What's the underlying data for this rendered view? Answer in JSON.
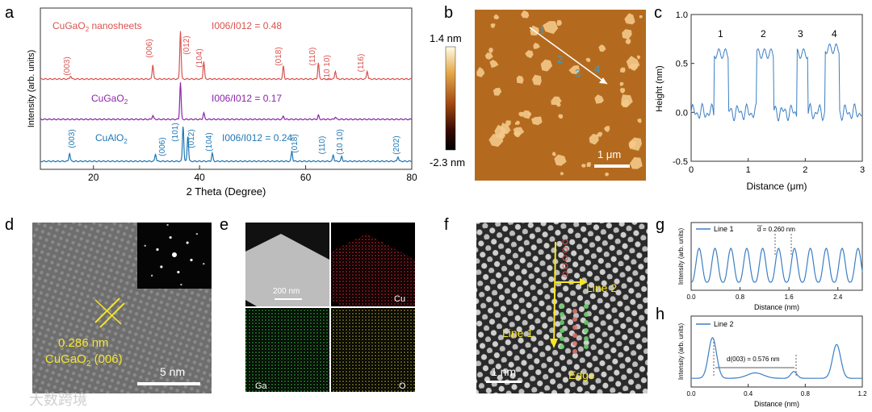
{
  "panel_letters": {
    "a": "a",
    "b": "b",
    "c": "c",
    "d": "d",
    "e": "e",
    "f": "f",
    "g": "g",
    "h": "h"
  },
  "panel_a": {
    "xlabel": "2 Theta (Degree)",
    "ylabel": "Intensity (arb. units)",
    "xticks": [
      "20",
      "40",
      "60",
      "80"
    ],
    "colors": {
      "nanosheets": "#d9534f",
      "cugao2": "#8e24aa",
      "cualo2": "#1f77b4"
    },
    "traces": [
      {
        "name_main": "CuGaO",
        "name_sub": "2",
        "name_tail": " nanosheets",
        "ratio": "I006/I012 = 0.48",
        "peaks": [
          "(003)",
          "(006)",
          "(012)",
          "(104)",
          "(018)",
          "(110)",
          "(10 10)",
          "(116)"
        ]
      },
      {
        "name_main": "CuGaO",
        "name_sub": "2",
        "name_tail": "",
        "ratio": "I006/I012 = 0.17",
        "peaks": []
      },
      {
        "name_main": "CuAlO",
        "name_sub": "2",
        "name_tail": "",
        "ratio": "I006/I012 = 0.24",
        "peaks": [
          "(003)",
          "(006)",
          "(101)",
          "(012)",
          "(104)",
          "(018)",
          "(110)",
          "(10 10)",
          "(202)"
        ]
      }
    ]
  },
  "panel_b": {
    "scale_top": "1.4 nm",
    "scale_bottom": "-2.3 nm",
    "scalebar": "1 μm",
    "markers": [
      "1",
      "2",
      "3",
      "4"
    ]
  },
  "panel_c": {
    "xlabel": "Distance (μm)",
    "ylabel": "Height (nm)",
    "xticks": [
      "0",
      "1",
      "2",
      "3"
    ],
    "yticks": [
      "1.0",
      "0.5",
      "0.0",
      "-0.5"
    ],
    "peak_labels": [
      "1",
      "2",
      "3",
      "4"
    ]
  },
  "panel_d": {
    "d_spacing": "0.286 nm",
    "plane_main": "CuGaO",
    "plane_sub": "2",
    "plane_tail": " (006)",
    "scalebar": "5 nm"
  },
  "panel_e": {
    "scalebar": "200 nm",
    "elements": [
      "Cu",
      "Ga",
      "O"
    ]
  },
  "panel_f": {
    "line1": "Line 1",
    "line2": "Line 2",
    "edge": "Edge",
    "scalebar": "1 nm"
  },
  "panel_g": {
    "legend": "Line 1",
    "dbar": "d = 0.260 nm",
    "xlabel": "Distance (nm)",
    "ylabel": "Intensity (arb. units)",
    "xticks": [
      "0.0",
      "0.8",
      "1.6",
      "2.4"
    ]
  },
  "panel_h": {
    "legend": "Line 2",
    "annotation": "d(003) = 0.576 nm",
    "xlabel": "Distance (nm)",
    "ylabel": "Intensity (arb. units)",
    "xticks": [
      "0.0",
      "0.4",
      "0.8",
      "1.2"
    ]
  },
  "watermark": "大数跨境"
}
